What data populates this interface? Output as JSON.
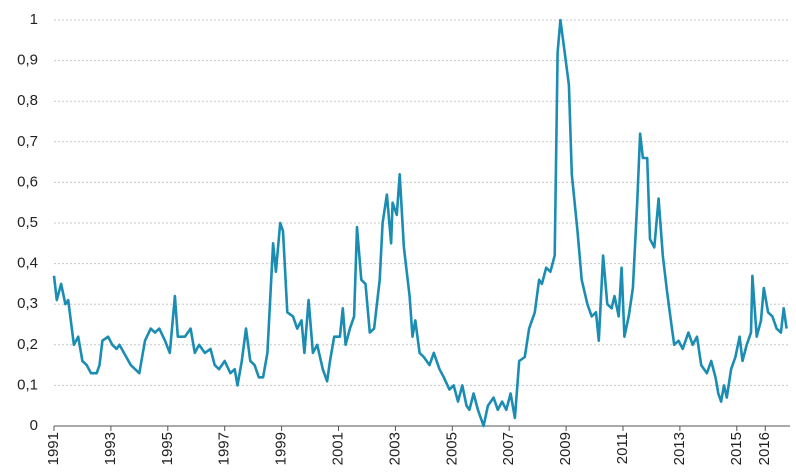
{
  "chart_data": {
    "type": "line",
    "x": [
      1991.0,
      1991.1,
      1991.25,
      1991.4,
      1991.5,
      1991.7,
      1991.85,
      1992.0,
      1992.15,
      1992.3,
      1992.5,
      1992.6,
      1992.7,
      1992.9,
      1993.05,
      1993.2,
      1993.3,
      1993.7,
      1993.85,
      1994.0,
      1994.2,
      1994.4,
      1994.55,
      1994.7,
      1994.9,
      1995.07,
      1995.25,
      1995.35,
      1995.6,
      1995.8,
      1995.95,
      1996.1,
      1996.3,
      1996.5,
      1996.65,
      1996.8,
      1997.0,
      1997.2,
      1997.35,
      1997.45,
      1997.6,
      1997.75,
      1997.9,
      1998.05,
      1998.2,
      1998.35,
      1998.5,
      1998.7,
      1998.8,
      1998.95,
      1999.05,
      1999.2,
      1999.4,
      1999.55,
      1999.7,
      1999.8,
      1999.95,
      2000.1,
      2000.25,
      2000.45,
      2000.6,
      2000.7,
      2000.85,
      2001.05,
      2001.15,
      2001.25,
      2001.4,
      2001.55,
      2001.65,
      2001.8,
      2001.95,
      2002.1,
      2002.25,
      2002.45,
      2002.55,
      2002.7,
      2002.85,
      2002.9,
      2003.05,
      2003.15,
      2003.3,
      2003.5,
      2003.6,
      2003.7,
      2003.85,
      2004.0,
      2004.2,
      2004.35,
      2004.55,
      2004.7,
      2004.9,
      2005.05,
      2005.2,
      2005.35,
      2005.5,
      2005.6,
      2005.75,
      2005.9,
      2006.1,
      2006.25,
      2006.45,
      2006.6,
      2006.75,
      2006.9,
      2007.05,
      2007.2,
      2007.35,
      2007.55,
      2007.7,
      2007.9,
      2008.05,
      2008.15,
      2008.3,
      2008.45,
      2008.6,
      2008.7,
      2008.8,
      2008.95,
      2009.1,
      2009.2,
      2009.4,
      2009.55,
      2009.75,
      2009.9,
      2010.05,
      2010.15,
      2010.3,
      2010.45,
      2010.6,
      2010.7,
      2010.85,
      2010.95,
      2011.05,
      2011.2,
      2011.35,
      2011.5,
      2011.6,
      2011.7,
      2011.85,
      2011.95,
      2012.1,
      2012.25,
      2012.4,
      2012.55,
      2012.7,
      2012.8,
      2012.95,
      2013.1,
      2013.3,
      2013.45,
      2013.6,
      2013.75,
      2013.95,
      2014.1,
      2014.25,
      2014.35,
      2014.45,
      2014.55,
      2014.65,
      2014.8,
      2014.95,
      2015.1,
      2015.2,
      2015.35,
      2015.5,
      2015.55,
      2015.7,
      2015.85,
      2015.95,
      2016.1,
      2016.25,
      2016.4,
      2016.55,
      2016.65,
      2016.75
    ],
    "series": [
      {
        "color": "#1b8db3",
        "values": [
          0.37,
          0.31,
          0.35,
          0.3,
          0.31,
          0.2,
          0.22,
          0.16,
          0.15,
          0.13,
          0.13,
          0.15,
          0.21,
          0.22,
          0.2,
          0.19,
          0.2,
          0.15,
          0.14,
          0.13,
          0.21,
          0.24,
          0.23,
          0.24,
          0.21,
          0.18,
          0.32,
          0.22,
          0.22,
          0.24,
          0.18,
          0.2,
          0.18,
          0.19,
          0.15,
          0.14,
          0.16,
          0.13,
          0.14,
          0.1,
          0.16,
          0.24,
          0.16,
          0.15,
          0.12,
          0.12,
          0.18,
          0.45,
          0.38,
          0.5,
          0.48,
          0.28,
          0.27,
          0.24,
          0.26,
          0.18,
          0.31,
          0.18,
          0.2,
          0.14,
          0.11,
          0.16,
          0.22,
          0.22,
          0.29,
          0.2,
          0.24,
          0.27,
          0.49,
          0.36,
          0.35,
          0.23,
          0.24,
          0.36,
          0.5,
          0.57,
          0.45,
          0.55,
          0.52,
          0.62,
          0.44,
          0.32,
          0.22,
          0.26,
          0.18,
          0.17,
          0.15,
          0.18,
          0.14,
          0.12,
          0.09,
          0.1,
          0.06,
          0.1,
          0.05,
          0.04,
          0.08,
          0.04,
          0.0,
          0.05,
          0.07,
          0.04,
          0.06,
          0.04,
          0.08,
          0.02,
          0.16,
          0.17,
          0.24,
          0.28,
          0.36,
          0.35,
          0.39,
          0.38,
          0.42,
          0.92,
          1.0,
          0.92,
          0.84,
          0.62,
          0.48,
          0.36,
          0.3,
          0.27,
          0.28,
          0.21,
          0.42,
          0.3,
          0.29,
          0.32,
          0.27,
          0.39,
          0.22,
          0.27,
          0.34,
          0.55,
          0.72,
          0.66,
          0.66,
          0.46,
          0.44,
          0.56,
          0.42,
          0.33,
          0.25,
          0.2,
          0.21,
          0.19,
          0.23,
          0.2,
          0.22,
          0.15,
          0.13,
          0.16,
          0.12,
          0.08,
          0.06,
          0.1,
          0.07,
          0.14,
          0.17,
          0.22,
          0.16,
          0.2,
          0.23,
          0.37,
          0.22,
          0.26,
          0.34,
          0.28,
          0.27,
          0.24,
          0.23,
          0.29,
          0.24
        ]
      }
    ],
    "xlim": [
      1991,
      2016.8
    ],
    "xticks": [
      1991,
      1993,
      1995,
      1997,
      1999,
      2001,
      2003,
      2005,
      2007,
      2009,
      2011,
      2013,
      2015,
      2016
    ],
    "ylim": [
      0,
      1
    ],
    "yticks": [
      0,
      {
        "value": 0.1,
        "label": "0,1"
      },
      {
        "value": 0.2,
        "label": "0,2"
      },
      {
        "value": 0.3,
        "label": "0,3"
      },
      {
        "value": 0.4,
        "label": "0,4"
      },
      {
        "value": 0.5,
        "label": "0,5"
      },
      {
        "value": 0.6,
        "label": "0,6"
      },
      {
        "value": 0.7,
        "label": "0,7"
      },
      {
        "value": 0.8,
        "label": "0,8"
      },
      {
        "value": 0.9,
        "label": "0,9"
      },
      1
    ],
    "grid": true
  }
}
